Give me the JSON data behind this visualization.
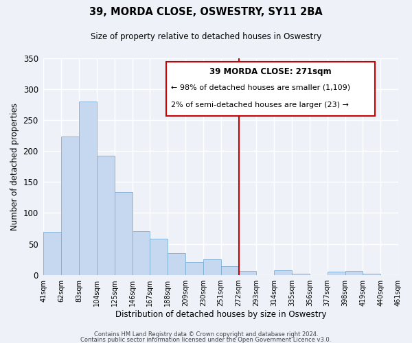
{
  "title": "39, MORDA CLOSE, OSWESTRY, SY11 2BA",
  "subtitle": "Size of property relative to detached houses in Oswestry",
  "xlabel": "Distribution of detached houses by size in Oswestry",
  "ylabel": "Number of detached properties",
  "bar_values": [
    70,
    224,
    280,
    193,
    134,
    71,
    58,
    35,
    21,
    25,
    14,
    6,
    0,
    7,
    2,
    0,
    5,
    6,
    2,
    0
  ],
  "bin_labels": [
    "41sqm",
    "62sqm",
    "83sqm",
    "104sqm",
    "125sqm",
    "146sqm",
    "167sqm",
    "188sqm",
    "209sqm",
    "230sqm",
    "251sqm",
    "272sqm",
    "293sqm",
    "314sqm",
    "335sqm",
    "356sqm",
    "377sqm",
    "398sqm",
    "419sqm",
    "440sqm",
    "461sqm"
  ],
  "bar_color": "#c5d8f0",
  "bar_edge_color": "#7bafd4",
  "vline_x_idx": 11,
  "vline_color": "#cc0000",
  "ylim": [
    0,
    350
  ],
  "yticks": [
    0,
    50,
    100,
    150,
    200,
    250,
    300,
    350
  ],
  "annotation_title": "39 MORDA CLOSE: 271sqm",
  "annotation_line1": "← 98% of detached houses are smaller (1,109)",
  "annotation_line2": "2% of semi-detached houses are larger (23) →",
  "annotation_box_color": "#cc0000",
  "footer_line1": "Contains HM Land Registry data © Crown copyright and database right 2024.",
  "footer_line2": "Contains public sector information licensed under the Open Government Licence v3.0.",
  "background_color": "#eef2f8",
  "grid_color": "#ffffff"
}
